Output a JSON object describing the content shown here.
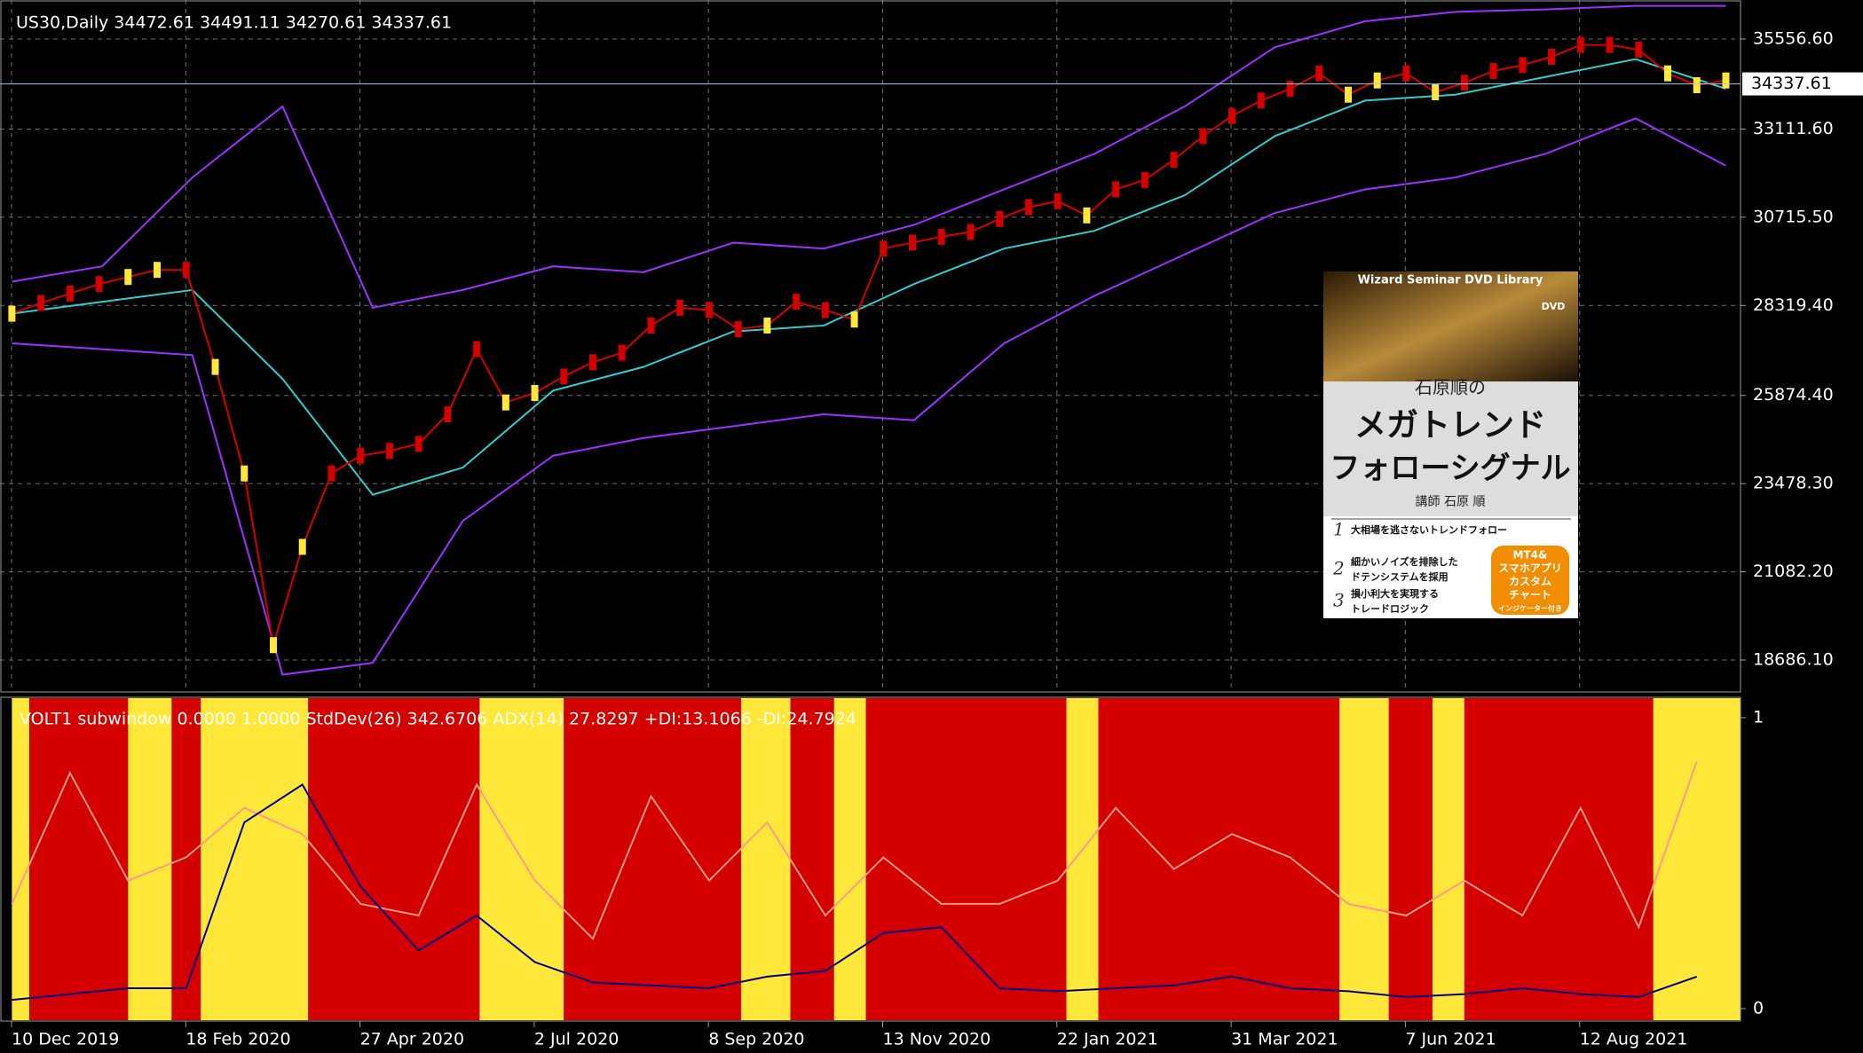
{
  "header": {
    "title": "US30,Daily  34472.61 34491.11 34270.61 34337.61"
  },
  "chart_data": {
    "type": "line",
    "categories": [
      "10 Dec 2019",
      "18 Feb 2020",
      "27 Apr 2020",
      "2 Jul 2020",
      "8 Sep 2020",
      "13 Nov 2020",
      "22 Jan 2021",
      "31 Mar 2021",
      "7 Jun 2021",
      "12 Aug 2021"
    ],
    "ylim": [
      17818,
      36617
    ],
    "yticks": [
      {
        "value": 35556.6,
        "label": "35556.60"
      },
      {
        "value": 33111.6,
        "label": "33111.60"
      },
      {
        "value": 30715.5,
        "label": "30715.50"
      },
      {
        "value": 28319.4,
        "label": "28319.40"
      },
      {
        "value": 25874.4,
        "label": "25874.40"
      },
      {
        "value": 23478.3,
        "label": "23478.30"
      },
      {
        "value": 21082.2,
        "label": "21082.20"
      },
      {
        "value": 18686.1,
        "label": "18686.10"
      }
    ],
    "last_price": 34337.61,
    "grid": true,
    "price": {
      "color": "#d40000",
      "values": [
        28095,
        28385,
        28642,
        28900,
        29093,
        29285,
        29285,
        26648,
        23754,
        19090,
        21760,
        23754,
        24236,
        24365,
        24558,
        25362,
        27131,
        25683,
        25940,
        26390,
        26776,
        27034,
        27773,
        28256,
        28192,
        27677,
        27773,
        28417,
        28192,
        27934,
        29864,
        30025,
        30186,
        30314,
        30668,
        30990,
        31151,
        30765,
        31472,
        31729,
        32276,
        32919,
        33466,
        33884,
        34206,
        34624,
        34045,
        34431,
        34624,
        34109,
        34367,
        34688,
        34849,
        35074,
        35396,
        35396,
        35267,
        34624,
        34302,
        34431
      ]
    },
    "bands": [
      {
        "color": "#9933ff",
        "values": [
          28964,
          29382,
          31794,
          33724,
          28256,
          28739,
          29382,
          29221,
          30025,
          29864,
          30507,
          31472,
          32437,
          33724,
          35332,
          36039,
          36296,
          36361,
          36457,
          36457
        ]
      },
      {
        "color": "#33cccc",
        "values": [
          28096,
          28417,
          28739,
          26326,
          23175,
          23915,
          26005,
          26648,
          27613,
          27773,
          28900,
          29864,
          30346,
          31311,
          32919,
          33884,
          34045,
          34527,
          35010,
          34206
        ]
      },
      {
        "color": "#9933ff",
        "values": [
          27291,
          27131,
          26970,
          18287,
          18608,
          22467,
          24236,
          24718,
          25040,
          25362,
          25201,
          27291,
          28578,
          29703,
          30829,
          31472,
          31794,
          32437,
          33402,
          32115
        ]
      }
    ]
  },
  "indicator": {
    "label": "VOLT1 subwindow 0.0000 1.0000  StdDev(26) 342.6706  ADX(14) 27.8297  +DI:13.1066 -DI:24.7924",
    "ylim": [
      0,
      1
    ],
    "yticks": [
      0,
      1
    ],
    "regimes": [
      {
        "color": "#ffe83a",
        "from": 0,
        "to": 0.6
      },
      {
        "color": "#d40000",
        "from": 0.6,
        "to": 4.0
      },
      {
        "color": "#ffe83a",
        "from": 4.0,
        "to": 5.5
      },
      {
        "color": "#d40000",
        "from": 5.5,
        "to": 6.5
      },
      {
        "color": "#ffe83a",
        "from": 6.5,
        "to": 10.2
      },
      {
        "color": "#d40000",
        "from": 10.2,
        "to": 16.1
      },
      {
        "color": "#ffe83a",
        "from": 16.1,
        "to": 19.0
      },
      {
        "color": "#d40000",
        "from": 19.0,
        "to": 25.1
      },
      {
        "color": "#ffe83a",
        "from": 25.1,
        "to": 26.8
      },
      {
        "color": "#d40000",
        "from": 26.8,
        "to": 28.3
      },
      {
        "color": "#ffe83a",
        "from": 28.3,
        "to": 29.4
      },
      {
        "color": "#d40000",
        "from": 29.4,
        "to": 36.3
      },
      {
        "color": "#ffe83a",
        "from": 36.3,
        "to": 37.4
      },
      {
        "color": "#d40000",
        "from": 37.4,
        "to": 45.7
      },
      {
        "color": "#ffe83a",
        "from": 45.7,
        "to": 47.4
      },
      {
        "color": "#d40000",
        "from": 47.4,
        "to": 48.9
      },
      {
        "color": "#ffe83a",
        "from": 48.9,
        "to": 50.0
      },
      {
        "color": "#d40000",
        "from": 50.0,
        "to": 56.5
      },
      {
        "color": "#ffe83a",
        "from": 56.5,
        "to": 59.5
      }
    ],
    "series": [
      {
        "color": "#ff9a8a",
        "values": [
          0.36,
          0.81,
          0.44,
          0.52,
          0.69,
          0.6,
          0.36,
          0.32,
          0.77,
          0.44,
          0.24,
          0.73,
          0.44,
          0.64,
          0.32,
          0.52,
          0.36,
          0.36,
          0.44,
          0.69,
          0.48,
          0.6,
          0.52,
          0.36,
          0.32,
          0.44,
          0.32,
          0.69,
          0.28,
          0.85
        ]
      },
      {
        "color": "#000080",
        "values": [
          0.03,
          0.05,
          0.07,
          0.07,
          0.64,
          0.77,
          0.42,
          0.2,
          0.32,
          0.16,
          0.09,
          0.08,
          0.07,
          0.11,
          0.13,
          0.26,
          0.28,
          0.07,
          0.06,
          0.07,
          0.08,
          0.11,
          0.07,
          0.06,
          0.04,
          0.05,
          0.07,
          0.05,
          0.04,
          0.11
        ]
      }
    ]
  },
  "book": {
    "series": "Wizard Seminar DVD Library",
    "badge": "DVD",
    "author_line": "石原順の",
    "title_1": "メガトレンド",
    "title_2": "フォローシグナル",
    "lecturer": "講師 石原 順",
    "points": [
      {
        "num": "1",
        "lines": [
          "大相場を逃さないトレンドフォロー"
        ]
      },
      {
        "num": "2",
        "lines": [
          "細かいノイズを排除した",
          "ドテンシステムを採用"
        ]
      },
      {
        "num": "3",
        "lines": [
          "損小利大を実現する",
          "トレードロジック"
        ]
      }
    ],
    "sticker": [
      "MT4&",
      "スマホアプリ",
      "カスタム",
      "チャート",
      "インジケーター付き"
    ]
  }
}
